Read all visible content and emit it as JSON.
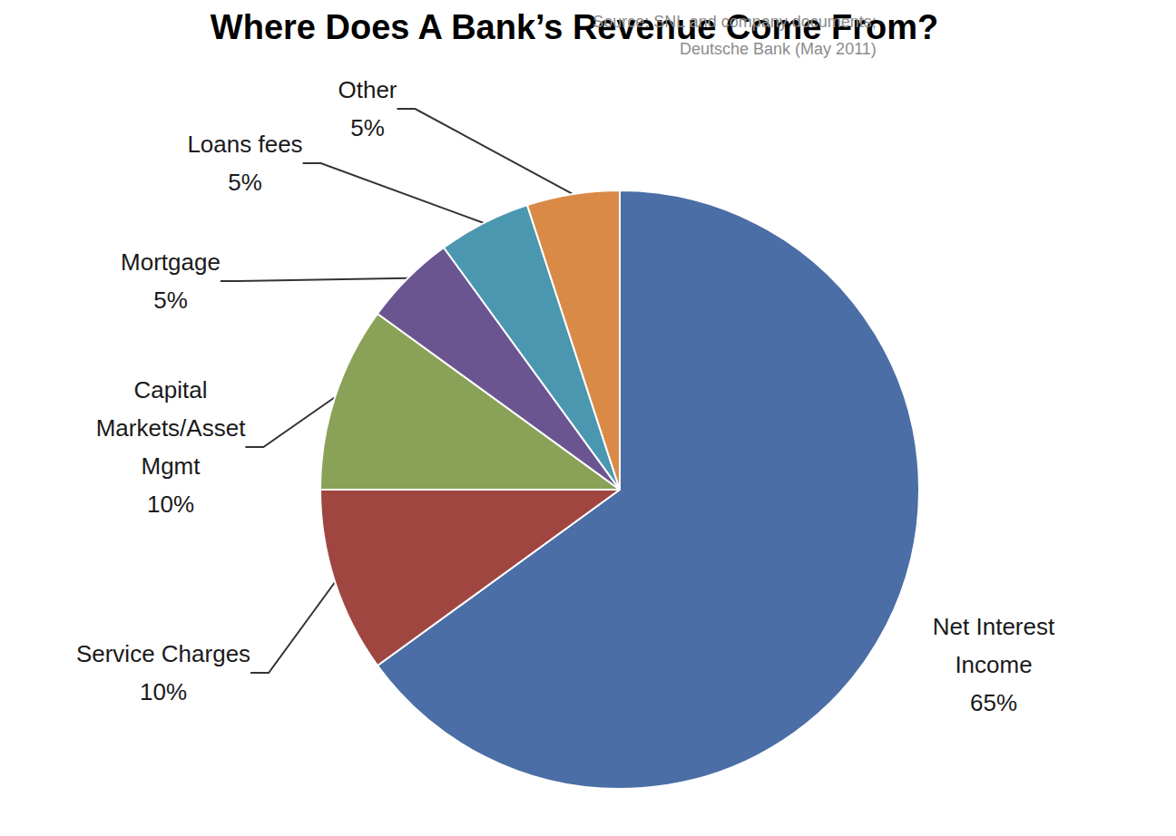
{
  "chart_data": {
    "type": "pie",
    "title": "Where Does A Bank’s Revenue Come From?",
    "source": [
      "Source: SNL and company documents;",
      "Deutsche Bank (May 2011)"
    ],
    "categories": [
      "Net Interest\nIncome",
      "Service Charges",
      "Capital\nMarkets/Asset\nMgmt",
      "Mortgage",
      "Loans fees",
      "Other"
    ],
    "values": [
      65,
      10,
      10,
      5,
      5,
      5
    ],
    "value_labels": [
      "65%",
      "10%",
      "10%",
      "5%",
      "5%",
      "5%"
    ],
    "colors": [
      "#4a6ea5",
      "#9f4641",
      "#89a257",
      "#6b5591",
      "#4b97b0",
      "#d98a46"
    ],
    "data_labels": true
  }
}
